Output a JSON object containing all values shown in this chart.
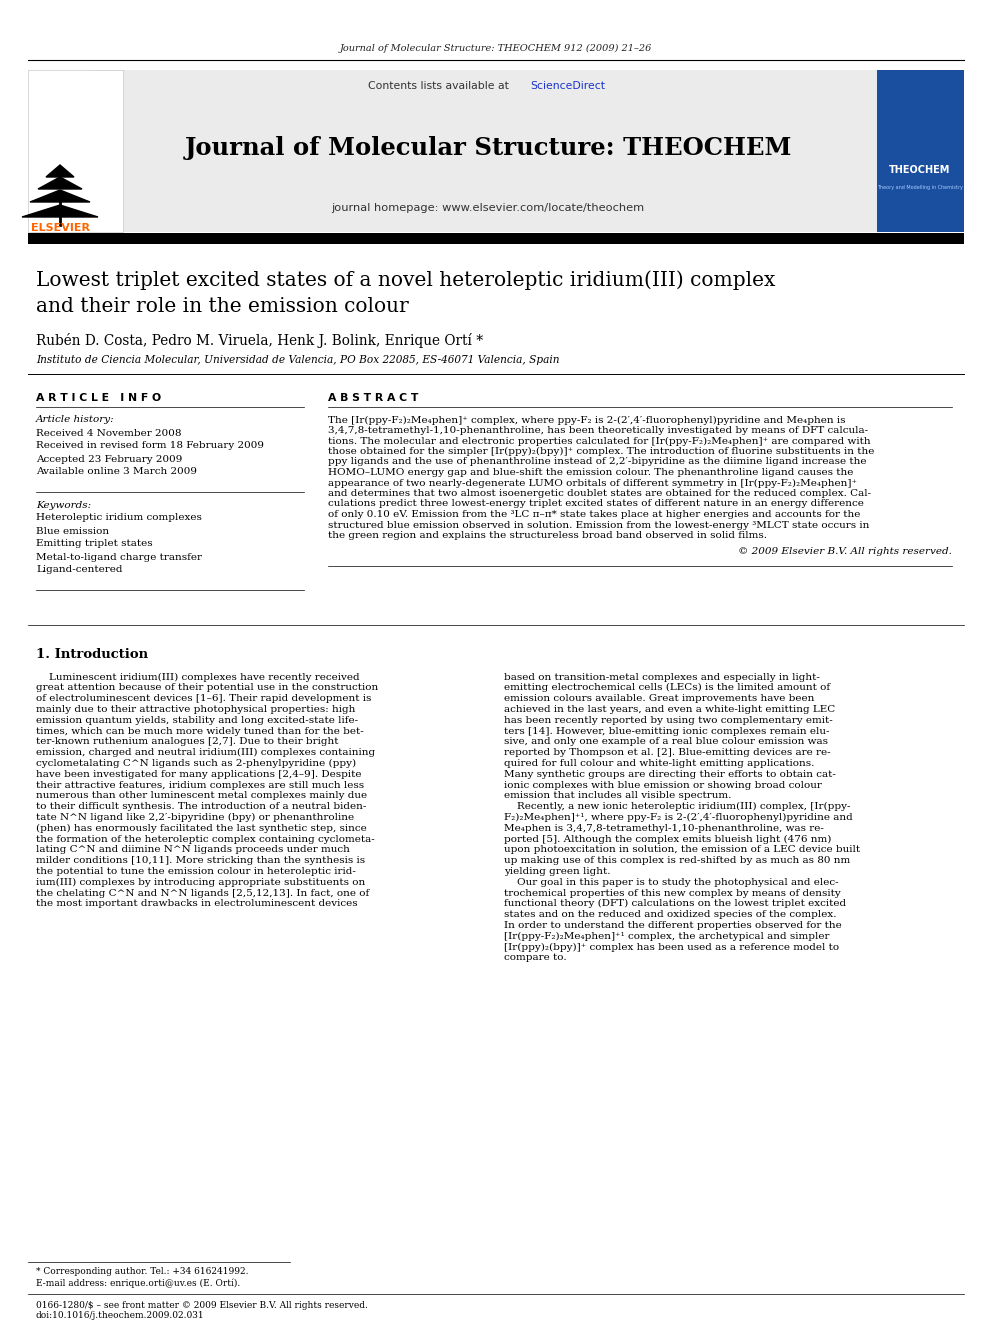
{
  "journal_ref": "Journal of Molecular Structure: THEOCHEM 912 (2009) 21–26",
  "journal_name": "Journal of Molecular Structure: THEOCHEM",
  "contents_plain": "Contents lists available at ",
  "contents_sd": "ScienceDirect",
  "homepage": "journal homepage: www.elsevier.com/locate/theochem",
  "elsevier_color": "#FF6600",
  "sciencedirect_color": "#1a33cc",
  "paper_title_line1": "Lowest triplet excited states of a novel heteroleptic iridium(III) complex",
  "paper_title_line2": "and their role in the emission colour",
  "authors": "Rubén D. Costa, Pedro M. Viruela, Henk J. Bolink, Enrique Ortí *",
  "affiliation": "Instituto de Ciencia Molecular, Universidad de Valencia, PO Box 22085, ES-46071 Valencia, Spain",
  "article_info_title": "A R T I C L E   I N F O",
  "abstract_title": "A B S T R A C T",
  "article_history_label": "Article history:",
  "received": "Received 4 November 2008",
  "received_revised": "Received in revised form 18 February 2009",
  "accepted": "Accepted 23 February 2009",
  "available": "Available online 3 March 2009",
  "keywords_label": "Keywords:",
  "keywords": [
    "Heteroleptic iridium complexes",
    "Blue emission",
    "Emitting triplet states",
    "Metal-to-ligand charge transfer",
    "Ligand-centered"
  ],
  "abstract_lines": [
    "The [Ir(ppy-F₂)₂Me₄phen]⁺ complex, where ppy-F₂ is 2-(2′,4′-fluorophenyl)pyridine and Me₄phen is",
    "3,4,7,8-tetramethyl-1,10-phenanthroline, has been theoretically investigated by means of DFT calcula-",
    "tions. The molecular and electronic properties calculated for [Ir(ppy-F₂)₂Me₄phen]⁺ are compared with",
    "those obtained for the simpler [Ir(ppy)₂(bpy)]⁺ complex. The introduction of fluorine substituents in the",
    "ppy ligands and the use of phenanthroline instead of 2,2′-bipyridine as the diimine ligand increase the",
    "HOMO–LUMO energy gap and blue-shift the emission colour. The phenanthroline ligand causes the",
    "appearance of two nearly-degenerate LUMO orbitals of different symmetry in [Ir(ppy-F₂)₂Me₄phen]⁺",
    "and determines that two almost isoenergetic doublet states are obtained for the reduced complex. Cal-",
    "culations predict three lowest-energy triplet excited states of different nature in an energy difference",
    "of only 0.10 eV. Emission from the ³LC π–π* state takes place at higher energies and accounts for the",
    "structured blue emission observed in solution. Emission from the lowest-energy ³MLCT state occurs in",
    "the green region and explains the structureless broad band observed in solid films."
  ],
  "copyright": "© 2009 Elsevier B.V. All rights reserved.",
  "intro_title": "1. Introduction",
  "intro_col1_lines": [
    "    Luminescent iridium(III) complexes have recently received",
    "great attention because of their potential use in the construction",
    "of electroluminescent devices [1–6]. Their rapid development is",
    "mainly due to their attractive photophysical properties: high",
    "emission quantum yields, stability and long excited-state life-",
    "times, which can be much more widely tuned than for the bet-",
    "ter-known ruthenium analogues [2,7]. Due to their bright",
    "emission, charged and neutral iridium(III) complexes containing",
    "cyclometalating C^N ligands such as 2-phenylpyridine (ppy)",
    "have been investigated for many applications [2,4–9]. Despite",
    "their attractive features, iridium complexes are still much less",
    "numerous than other luminescent metal complexes mainly due",
    "to their difficult synthesis. The introduction of a neutral biden-",
    "tate N^N ligand like 2,2′-bipyridine (bpy) or phenanthroline",
    "(phen) has enormously facilitated the last synthetic step, since",
    "the formation of the heteroleptic complex containing cyclometa-",
    "lating C^N and diimine N^N ligands proceeds under much",
    "milder conditions [10,11]. More stricking than the synthesis is",
    "the potential to tune the emission colour in heteroleptic irid-",
    "ium(III) complexes by introducing appropriate substituents on",
    "the chelating C^N and N^N ligands [2,5,12,13]. In fact, one of",
    "the most important drawbacks in electroluminescent devices"
  ],
  "intro_col2_lines": [
    "based on transition-metal complexes and especially in light-",
    "emitting electrochemical cells (LECs) is the limited amount of",
    "emission colours available. Great improvements have been",
    "achieved in the last years, and even a white-light emitting LEC",
    "has been recently reported by using two complementary emit-",
    "ters [14]. However, blue-emitting ionic complexes remain elu-",
    "sive, and only one example of a real blue colour emission was",
    "reported by Thompson et al. [2]. Blue-emitting devices are re-",
    "quired for full colour and white-light emitting applications.",
    "Many synthetic groups are directing their efforts to obtain cat-",
    "ionic complexes with blue emission or showing broad colour",
    "emission that includes all visible spectrum.",
    "    Recently, a new ionic heteroleptic iridium(III) complex, [Ir(ppy-",
    "F₂)₂Me₄phen]⁺¹, where ppy-F₂ is 2-(2′,4′-fluorophenyl)pyridine and",
    "Me₄phen is 3,4,7,8-tetramethyl-1,10-phenanthroline, was re-",
    "ported [5]. Although the complex emits blueish light (476 nm)",
    "upon photoexcitation in solution, the emission of a LEC device built",
    "up making use of this complex is red-shifted by as much as 80 nm",
    "yielding green light.",
    "    Our goal in this paper is to study the photophysical and elec-",
    "trochemical properties of this new complex by means of density",
    "functional theory (DFT) calculations on the lowest triplet excited",
    "states and on the reduced and oxidized species of the complex.",
    "In order to understand the different properties observed for the",
    "[Ir(ppy-F₂)₂Me₄phen]⁺¹ complex, the archetypical and simpler",
    "[Ir(ppy)₂(bpy)]⁺ complex has been used as a reference model to",
    "compare to."
  ],
  "footnote_star": "* Corresponding author. Tel.: +34 616241992.",
  "footnote_email": "E-mail address: enrique.orti@uv.es (E. Ortí).",
  "footnote_issn": "0166-1280/$ – see front matter © 2009 Elsevier B.V. All rights reserved.",
  "footnote_doi": "doi:10.1016/j.theochem.2009.02.031",
  "bg_color": "#FFFFFF",
  "header_bg": "#EBEBEB",
  "cover_bg": "#1a4fa0",
  "bar_color": "#000000",
  "text_color": "#000000"
}
